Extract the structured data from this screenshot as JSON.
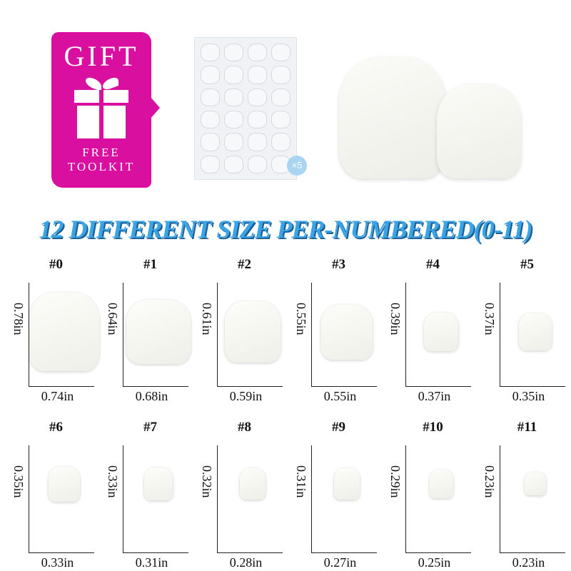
{
  "gift": {
    "title": "GIFT",
    "line1": "FREE",
    "line2": "TOOLKIT",
    "icon": "gift-box-icon",
    "color": "#d90fa0"
  },
  "adhesive": {
    "badge": "×5"
  },
  "headline": "12 DIFFERENT SIZE PER-NUMBERED(0-11)",
  "headline_color": "#3aa4e6",
  "sizes": [
    {
      "label": "#0",
      "height": "0.78in",
      "width": "0.74in",
      "h": 0.78,
      "w": 0.74
    },
    {
      "label": "#1",
      "height": "0.64in",
      "width": "0.68in",
      "h": 0.64,
      "w": 0.68
    },
    {
      "label": "#2",
      "height": "0.61in",
      "width": "0.59in",
      "h": 0.61,
      "w": 0.59
    },
    {
      "label": "#3",
      "height": "0.55in",
      "width": "0.55in",
      "h": 0.55,
      "w": 0.55
    },
    {
      "label": "#4",
      "height": "0.39in",
      "width": "0.37in",
      "h": 0.39,
      "w": 0.37
    },
    {
      "label": "#5",
      "height": "0.37in",
      "width": "0.35in",
      "h": 0.37,
      "w": 0.35
    },
    {
      "label": "#6",
      "height": "0.35in",
      "width": "0.33in",
      "h": 0.35,
      "w": 0.33
    },
    {
      "label": "#7",
      "height": "0.33in",
      "width": "0.31in",
      "h": 0.33,
      "w": 0.31
    },
    {
      "label": "#8",
      "height": "0.32in",
      "width": "0.28in",
      "h": 0.32,
      "w": 0.28
    },
    {
      "label": "#9",
      "height": "0.31in",
      "width": "0.27in",
      "h": 0.31,
      "w": 0.27
    },
    {
      "label": "#10",
      "height": "0.29in",
      "width": "0.25in",
      "h": 0.29,
      "w": 0.25
    },
    {
      "label": "#11",
      "height": "0.23in",
      "width": "0.23in",
      "h": 0.23,
      "w": 0.23
    }
  ]
}
